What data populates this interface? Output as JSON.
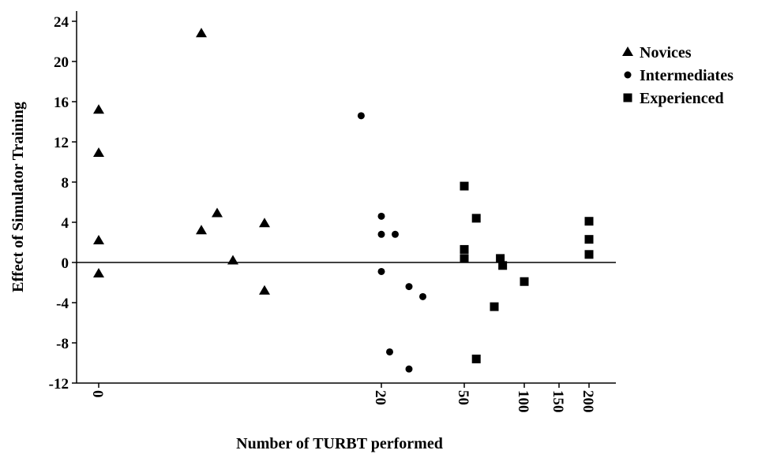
{
  "chart_data": {
    "type": "scatter",
    "title": "",
    "xlabel": "Number of TURBT performed",
    "ylabel": "Effect of Simulator Training",
    "ylim": [
      -12,
      24
    ],
    "y_ticks": [
      "24",
      "20",
      "16",
      "12",
      "8",
      "4",
      "0",
      "-4",
      "-8",
      "-12"
    ],
    "x_scale": "non-linear (0 to 200)",
    "xlim": [
      0,
      200
    ],
    "x_ticks": [
      "0",
      "20",
      "50",
      "100",
      "150",
      "200"
    ],
    "reference_line_y": 0,
    "grid": false,
    "legend_position": "right",
    "colors": {
      "marker": "#000000",
      "axis": "#000000"
    },
    "series": [
      {
        "name": "Novices",
        "marker": "triangle",
        "points": [
          {
            "x": 0,
            "y": 15.2
          },
          {
            "x": 0,
            "y": 10.9
          },
          {
            "x": 0,
            "y": 2.2
          },
          {
            "x": 0,
            "y": -1.1
          },
          {
            "x": 5,
            "y": 22.8
          },
          {
            "x": 5,
            "y": 3.2
          },
          {
            "x": 6,
            "y": 4.9
          },
          {
            "x": 7,
            "y": 0.2
          },
          {
            "x": 9,
            "y": 3.9
          },
          {
            "x": 9,
            "y": -2.8
          }
        ]
      },
      {
        "name": "Intermediates",
        "marker": "circle",
        "points": [
          {
            "x": 18,
            "y": 14.6
          },
          {
            "x": 20,
            "y": 4.6
          },
          {
            "x": 20,
            "y": 2.8
          },
          {
            "x": 20,
            "y": -0.9
          },
          {
            "x": 25,
            "y": 2.8
          },
          {
            "x": 23,
            "y": -8.9
          },
          {
            "x": 30,
            "y": -2.4
          },
          {
            "x": 30,
            "y": -10.6
          },
          {
            "x": 35,
            "y": -3.4
          }
        ]
      },
      {
        "name": "Experienced",
        "marker": "square",
        "points": [
          {
            "x": 50,
            "y": 7.6
          },
          {
            "x": 50,
            "y": 1.3
          },
          {
            "x": 50,
            "y": 0.4
          },
          {
            "x": 60,
            "y": 4.4
          },
          {
            "x": 60,
            "y": -9.6
          },
          {
            "x": 75,
            "y": -4.4
          },
          {
            "x": 80,
            "y": 0.4
          },
          {
            "x": 82,
            "y": -0.3
          },
          {
            "x": 100,
            "y": -1.9
          },
          {
            "x": 200,
            "y": 4.1
          },
          {
            "x": 200,
            "y": 2.3
          },
          {
            "x": 200,
            "y": 0.8
          }
        ]
      }
    ]
  }
}
